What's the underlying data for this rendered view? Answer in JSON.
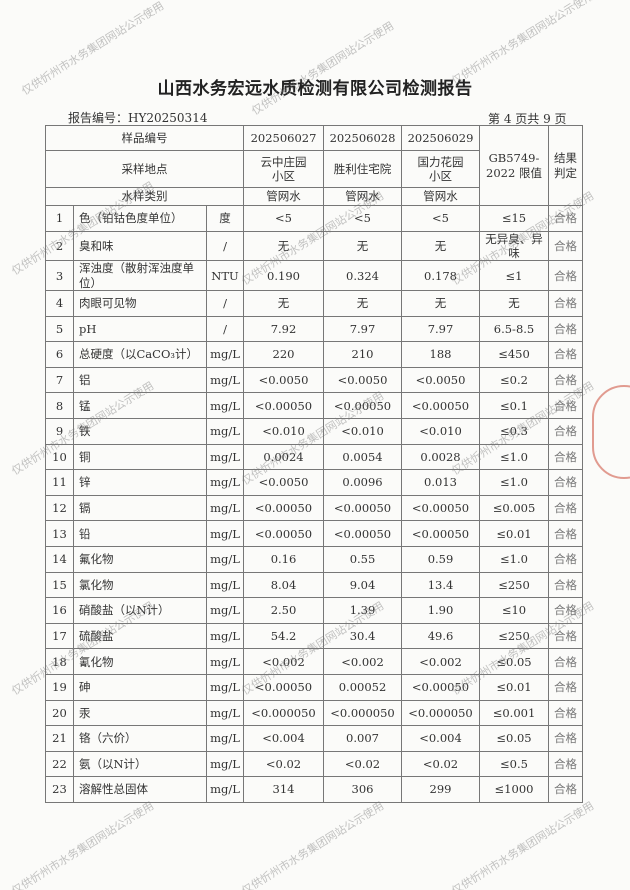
{
  "title": "山西水务宏远水质检测有限公司检测报告",
  "report_no": "报告编号：HY20250314",
  "page_no": "第 4 页共 9 页",
  "watermark": "仅供忻州市水务集团网站公示使用",
  "header": {
    "sample_no_label": "样品编号",
    "site_label": "采样地点",
    "type_label": "水样类别",
    "standard_label": "GB5749-2022 限值",
    "result_label": "结果判定",
    "samples": [
      {
        "no": "202506027",
        "site": "云中庄园小区",
        "type": "管网水"
      },
      {
        "no": "202506028",
        "site": "胜利住宅院",
        "type": "管网水"
      },
      {
        "no": "202506029",
        "site": "国力花园小区",
        "type": "管网水"
      }
    ]
  },
  "rows": [
    {
      "n": "1",
      "item": "色（铂钴色度单位）",
      "unit": "度",
      "v": [
        "<5",
        "<5",
        "<5"
      ],
      "limit": "≤15",
      "result": "合格"
    },
    {
      "n": "2",
      "item": "臭和味",
      "unit": "/",
      "v": [
        "无",
        "无",
        "无"
      ],
      "limit": "无异臭、异味",
      "result": "合格"
    },
    {
      "n": "3",
      "item": "浑浊度（散射浑浊度单位）",
      "unit": "NTU",
      "v": [
        "0.190",
        "0.324",
        "0.178"
      ],
      "limit": "≤1",
      "result": "合格"
    },
    {
      "n": "4",
      "item": "肉眼可见物",
      "unit": "/",
      "v": [
        "无",
        "无",
        "无"
      ],
      "limit": "无",
      "result": "合格"
    },
    {
      "n": "5",
      "item": "pH",
      "unit": "/",
      "v": [
        "7.92",
        "7.97",
        "7.97"
      ],
      "limit": "6.5-8.5",
      "result": "合格"
    },
    {
      "n": "6",
      "item": "总硬度（以CaCO₃计）",
      "unit": "mg/L",
      "v": [
        "220",
        "210",
        "188"
      ],
      "limit": "≤450",
      "result": "合格"
    },
    {
      "n": "7",
      "item": "铝",
      "unit": "mg/L",
      "v": [
        "<0.0050",
        "<0.0050",
        "<0.0050"
      ],
      "limit": "≤0.2",
      "result": "合格"
    },
    {
      "n": "8",
      "item": "锰",
      "unit": "mg/L",
      "v": [
        "<0.00050",
        "<0.00050",
        "<0.00050"
      ],
      "limit": "≤0.1",
      "result": "合格"
    },
    {
      "n": "9",
      "item": "铁",
      "unit": "mg/L",
      "v": [
        "<0.010",
        "<0.010",
        "<0.010"
      ],
      "limit": "≤0.3",
      "result": "合格"
    },
    {
      "n": "10",
      "item": "铜",
      "unit": "mg/L",
      "v": [
        "0.0024",
        "0.0054",
        "0.0028"
      ],
      "limit": "≤1.0",
      "result": "合格"
    },
    {
      "n": "11",
      "item": "锌",
      "unit": "mg/L",
      "v": [
        "<0.0050",
        "0.0096",
        "0.013"
      ],
      "limit": "≤1.0",
      "result": "合格"
    },
    {
      "n": "12",
      "item": "镉",
      "unit": "mg/L",
      "v": [
        "<0.00050",
        "<0.00050",
        "<0.00050"
      ],
      "limit": "≤0.005",
      "result": "合格"
    },
    {
      "n": "13",
      "item": "铅",
      "unit": "mg/L",
      "v": [
        "<0.00050",
        "<0.00050",
        "<0.00050"
      ],
      "limit": "≤0.01",
      "result": "合格"
    },
    {
      "n": "14",
      "item": "氟化物",
      "unit": "mg/L",
      "v": [
        "0.16",
        "0.55",
        "0.59"
      ],
      "limit": "≤1.0",
      "result": "合格"
    },
    {
      "n": "15",
      "item": "氯化物",
      "unit": "mg/L",
      "v": [
        "8.04",
        "9.04",
        "13.4"
      ],
      "limit": "≤250",
      "result": "合格"
    },
    {
      "n": "16",
      "item": "硝酸盐（以N计）",
      "unit": "mg/L",
      "v": [
        "2.50",
        "1.39",
        "1.90"
      ],
      "limit": "≤10",
      "result": "合格"
    },
    {
      "n": "17",
      "item": "硫酸盐",
      "unit": "mg/L",
      "v": [
        "54.2",
        "30.4",
        "49.6"
      ],
      "limit": "≤250",
      "result": "合格"
    },
    {
      "n": "18",
      "item": "氰化物",
      "unit": "mg/L",
      "v": [
        "<0.002",
        "<0.002",
        "<0.002"
      ],
      "limit": "≤0.05",
      "result": "合格"
    },
    {
      "n": "19",
      "item": "砷",
      "unit": "mg/L",
      "v": [
        "<0.00050",
        "0.00052",
        "<0.00050"
      ],
      "limit": "≤0.01",
      "result": "合格"
    },
    {
      "n": "20",
      "item": "汞",
      "unit": "mg/L",
      "v": [
        "<0.000050",
        "<0.000050",
        "<0.000050"
      ],
      "limit": "≤0.001",
      "result": "合格"
    },
    {
      "n": "21",
      "item": "铬（六价）",
      "unit": "mg/L",
      "v": [
        "<0.004",
        "0.007",
        "<0.004"
      ],
      "limit": "≤0.05",
      "result": "合格"
    },
    {
      "n": "22",
      "item": "氨（以N计）",
      "unit": "mg/L",
      "v": [
        "<0.02",
        "<0.02",
        "<0.02"
      ],
      "limit": "≤0.5",
      "result": "合格"
    },
    {
      "n": "23",
      "item": "溶解性总固体",
      "unit": "mg/L",
      "v": [
        "314",
        "306",
        "299"
      ],
      "limit": "≤1000",
      "result": "合格"
    }
  ]
}
